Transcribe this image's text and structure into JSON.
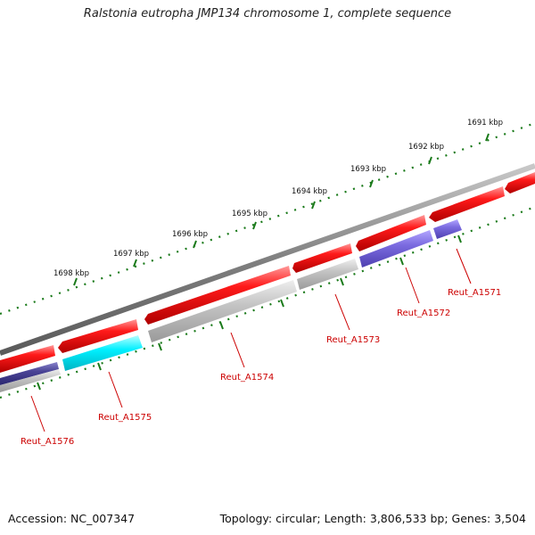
{
  "title": "Ralstonia eutropha JMP134 chromosome 1, complete sequence",
  "footer": {
    "accession": "Accession: NC_007347",
    "summary": "Topology: circular; Length: 3,806,533 bp; Genes: 3,504"
  },
  "kbp_ticks": [
    {
      "label": "1691 kbp"
    },
    {
      "label": "1692 kbp"
    },
    {
      "label": "1693 kbp"
    },
    {
      "label": "1694 kbp"
    },
    {
      "label": "1695 kbp"
    },
    {
      "label": "1696 kbp"
    },
    {
      "label": "1697 kbp"
    },
    {
      "label": "1698 kbp"
    }
  ],
  "genes": [
    {
      "label": "Reut_A1571",
      "color": "#6a5acd"
    },
    {
      "label": "Reut_A1572",
      "color": "#7b68dd"
    },
    {
      "label": "Reut_A1573",
      "color": "#b8b8b8"
    },
    {
      "label": "Reut_A1574",
      "color": "#b8b8b8"
    },
    {
      "label": "Reut_A1575",
      "color": "#00e5ee"
    },
    {
      "label": "Reut_A1576",
      "color": "#4b4b9b"
    }
  ],
  "colors": {
    "forward_strand_gene": "#e00000",
    "backbone": "#808080",
    "tick": "#1a7a1a",
    "gene_label": "#cc0000"
  }
}
